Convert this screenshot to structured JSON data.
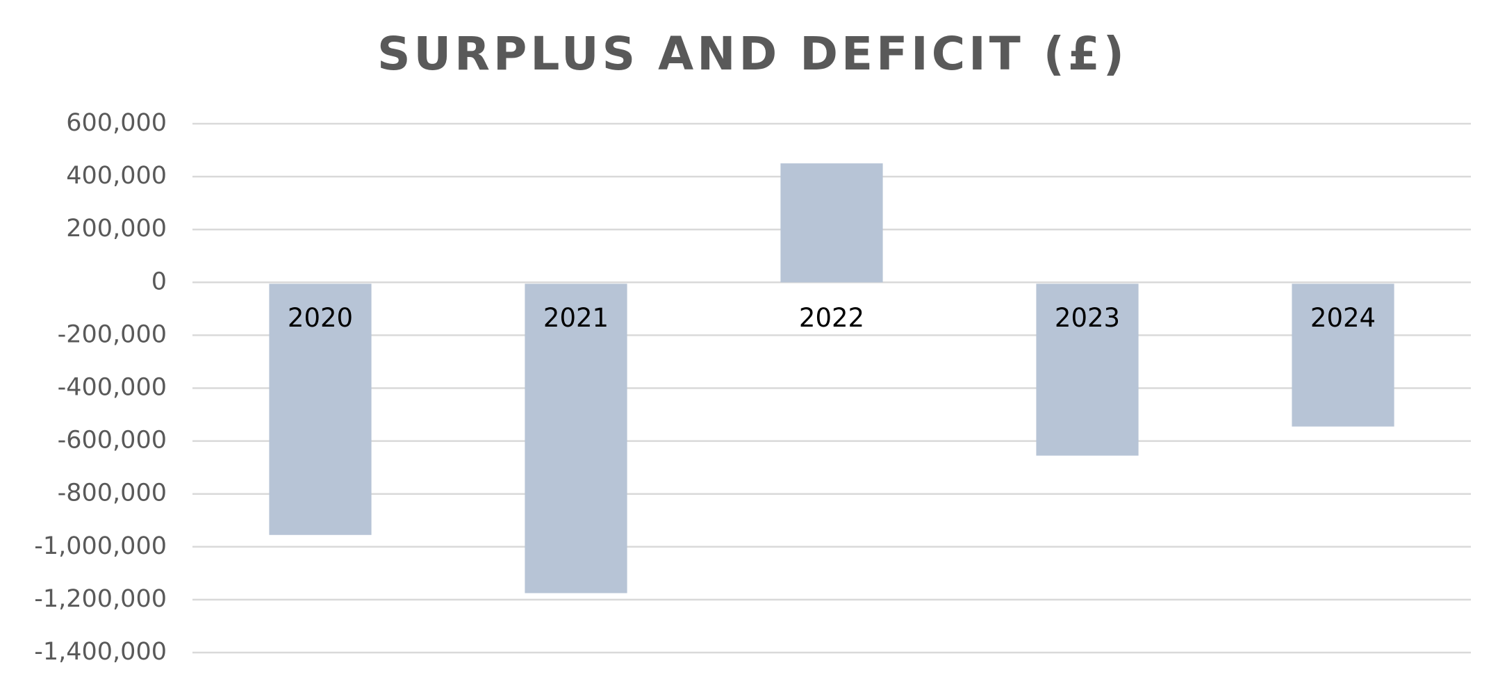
{
  "chart_data": {
    "type": "bar",
    "title": "SURPLUS AND DEFICIT (£)",
    "categories": [
      "2020",
      "2021",
      "2022",
      "2023",
      "2024"
    ],
    "values": [
      -950000,
      -1170000,
      450000,
      -650000,
      -540000
    ],
    "color": "#b7c4d6",
    "ylim": [
      -1400000,
      600000
    ],
    "yticks": [
      {
        "value": 600000,
        "label": "600,000"
      },
      {
        "value": 400000,
        "label": "400,000"
      },
      {
        "value": 200000,
        "label": "200,000"
      },
      0,
      {
        "value": -200000,
        "label": "-200,000"
      },
      {
        "value": -400000,
        "label": "-400,000"
      },
      {
        "value": -600000,
        "label": "-600,000"
      },
      {
        "value": -800000,
        "label": "-800,000"
      },
      {
        "value": -1000000,
        "label": "-1,000,000"
      },
      {
        "value": -1200000,
        "label": "-1,200,000"
      },
      {
        "value": -1400000,
        "label": "-1,400,000"
      }
    ],
    "grid": true
  }
}
